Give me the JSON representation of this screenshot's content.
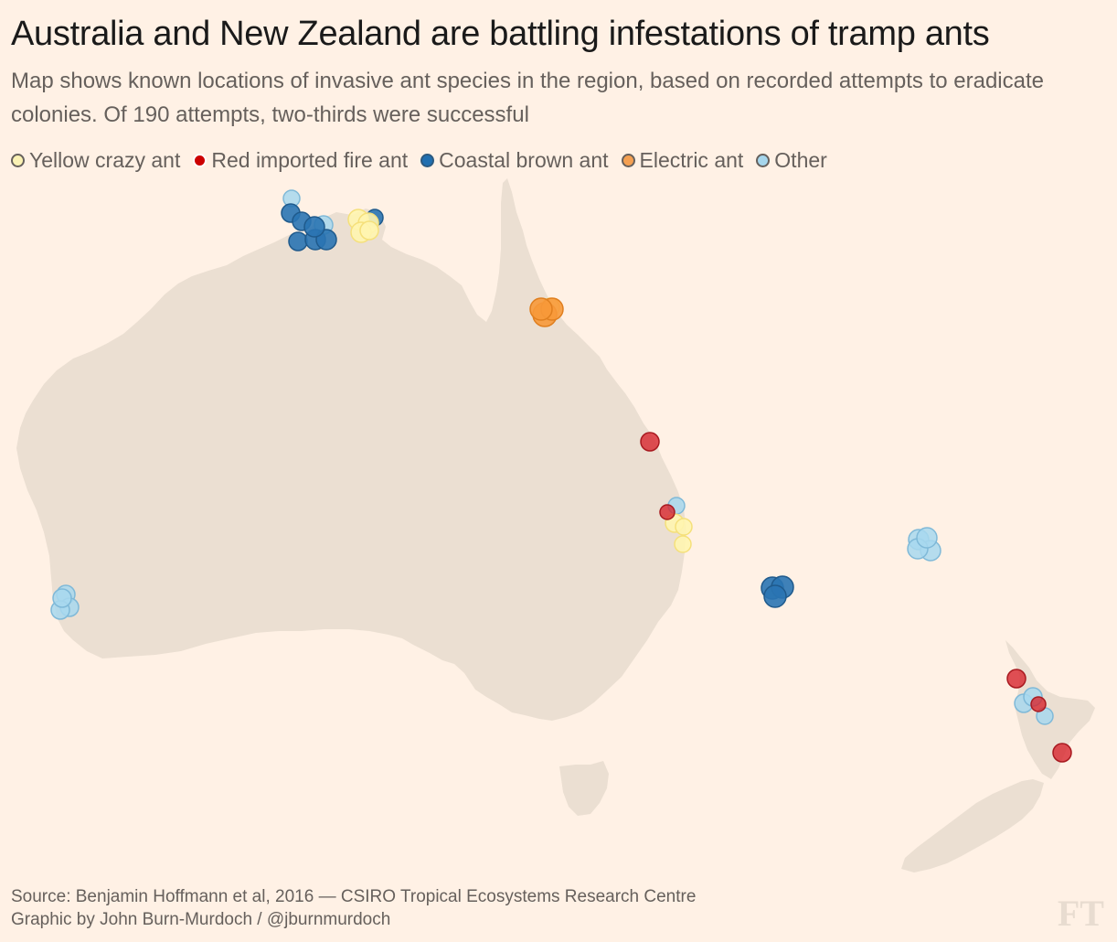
{
  "title": "Australia and New Zealand are battling infestations of tramp ants",
  "subtitle": "Map shows known locations of invasive ant species in the region, based on recorded attempts to eradicate colonies. Of 190 attempts, two-thirds were successful",
  "legend": [
    {
      "label": "Yellow crazy ant",
      "fill": "#fbf2b4",
      "stroke": "#66605c"
    },
    {
      "label": "Red imported fire ant",
      "fill": "#cc0000",
      "stroke": "#66605c"
    },
    {
      "label": "Coastal brown ant",
      "fill": "#206fb0",
      "stroke": "#66605c"
    },
    {
      "label": "Electric ant",
      "fill": "#f4a052",
      "stroke": "#66605c"
    },
    {
      "label": "Other",
      "fill": "#a6d6ec",
      "stroke": "#66605c"
    }
  ],
  "colors": {
    "background": "#fff1e5",
    "land": "#ebdfd2",
    "yellow_crazy_ant": "#fff5b0",
    "red_imported_fire_ant": "#d7262e",
    "coastal_brown_ant": "#2a74b3",
    "electric_ant": "#f7993a",
    "other": "#a8d8ee"
  },
  "source_line1": "Source: Benjamin Hoffmann et al, 2016 — CSIRO Tropical Ecosystems Research Centre",
  "source_line2": "Graphic by John Burn-Murdoch / @jburnmurdoch",
  "logo": "FT"
}
